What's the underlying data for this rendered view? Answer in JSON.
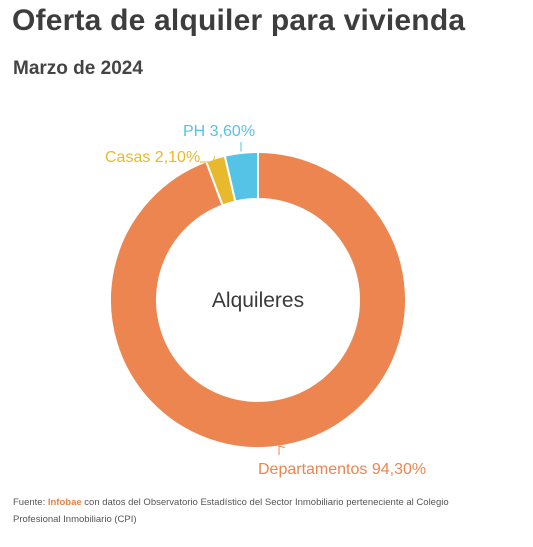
{
  "header": {
    "title": "Oferta de alquiler para vivienda",
    "subtitle": "Marzo de 2024"
  },
  "chart_data": {
    "type": "pie",
    "variant": "donut",
    "center_label": "Alquileres",
    "slices": [
      {
        "label": "Departamentos",
        "value": 94.3,
        "display": "Departamentos 94,30%",
        "color": "#ec8550"
      },
      {
        "label": "Casas",
        "value": 2.1,
        "display": "Casas 2,10%",
        "color": "#e8b92c"
      },
      {
        "label": "PH",
        "value": 3.6,
        "display": "PH 3,60%",
        "color": "#55c3e6"
      }
    ]
  },
  "footer": {
    "prefix": "Fuente: ",
    "brand": "Infobae",
    "text": " con datos del Observatorio Estadístico del Sector Inmobiliario perteneciente al Colegio Profesional Inmobiliario (CPI)"
  }
}
